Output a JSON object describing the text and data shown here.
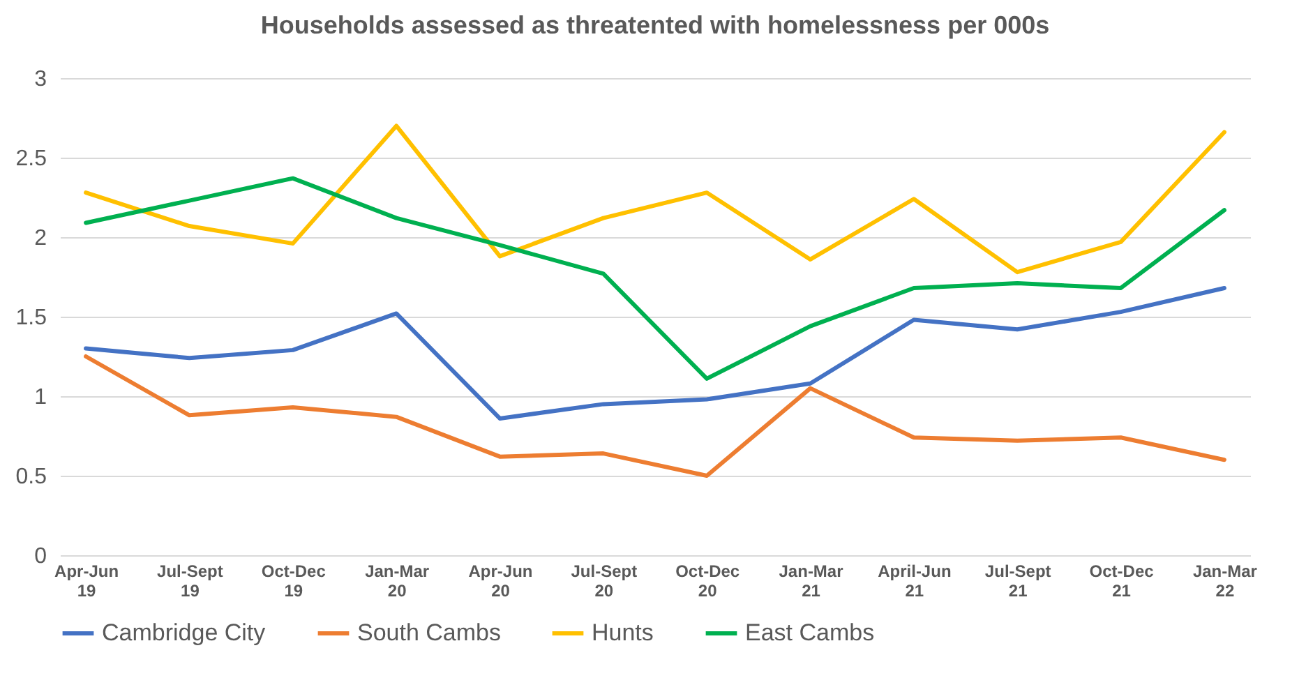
{
  "chart_data": {
    "type": "line",
    "title": "Households assessed as threatented with homelessness per 000s",
    "categories": [
      "Apr-Jun 19",
      "Jul-Sept 19",
      "Oct-Dec 19",
      "Jan-Mar 20",
      "Apr-Jun 20",
      "Jul-Sept 20",
      "Oct-Dec 20",
      "Jan-Mar 21",
      "April-Jun 21",
      "Jul-Sept 21",
      "Oct-Dec 21",
      "Jan-Mar 22"
    ],
    "series": [
      {
        "name": "Cambridge City",
        "color": "#4472c4",
        "values": [
          1.3,
          1.24,
          1.29,
          1.52,
          0.86,
          0.95,
          0.98,
          1.08,
          1.48,
          1.42,
          1.53,
          1.68
        ]
      },
      {
        "name": "South Cambs",
        "color": "#ed7d31",
        "values": [
          1.25,
          0.88,
          0.93,
          0.87,
          0.62,
          0.64,
          0.5,
          1.05,
          0.74,
          0.72,
          0.74,
          0.6
        ]
      },
      {
        "name": "Hunts",
        "color": "#ffc000",
        "values": [
          2.28,
          2.07,
          1.96,
          2.7,
          1.88,
          2.12,
          2.28,
          1.86,
          2.24,
          1.78,
          1.97,
          2.66
        ]
      },
      {
        "name": "East Cambs",
        "color": "#00b050",
        "values": [
          2.09,
          2.23,
          2.37,
          2.12,
          1.95,
          1.77,
          1.11,
          1.44,
          1.68,
          1.71,
          1.68,
          2.17
        ]
      }
    ],
    "ylim": [
      0,
      3
    ],
    "yticks": [
      0,
      0.5,
      1,
      1.5,
      2,
      2.5,
      3
    ],
    "grid": "y",
    "legend": "bottom",
    "marker": "none",
    "line_style": "solid"
  }
}
